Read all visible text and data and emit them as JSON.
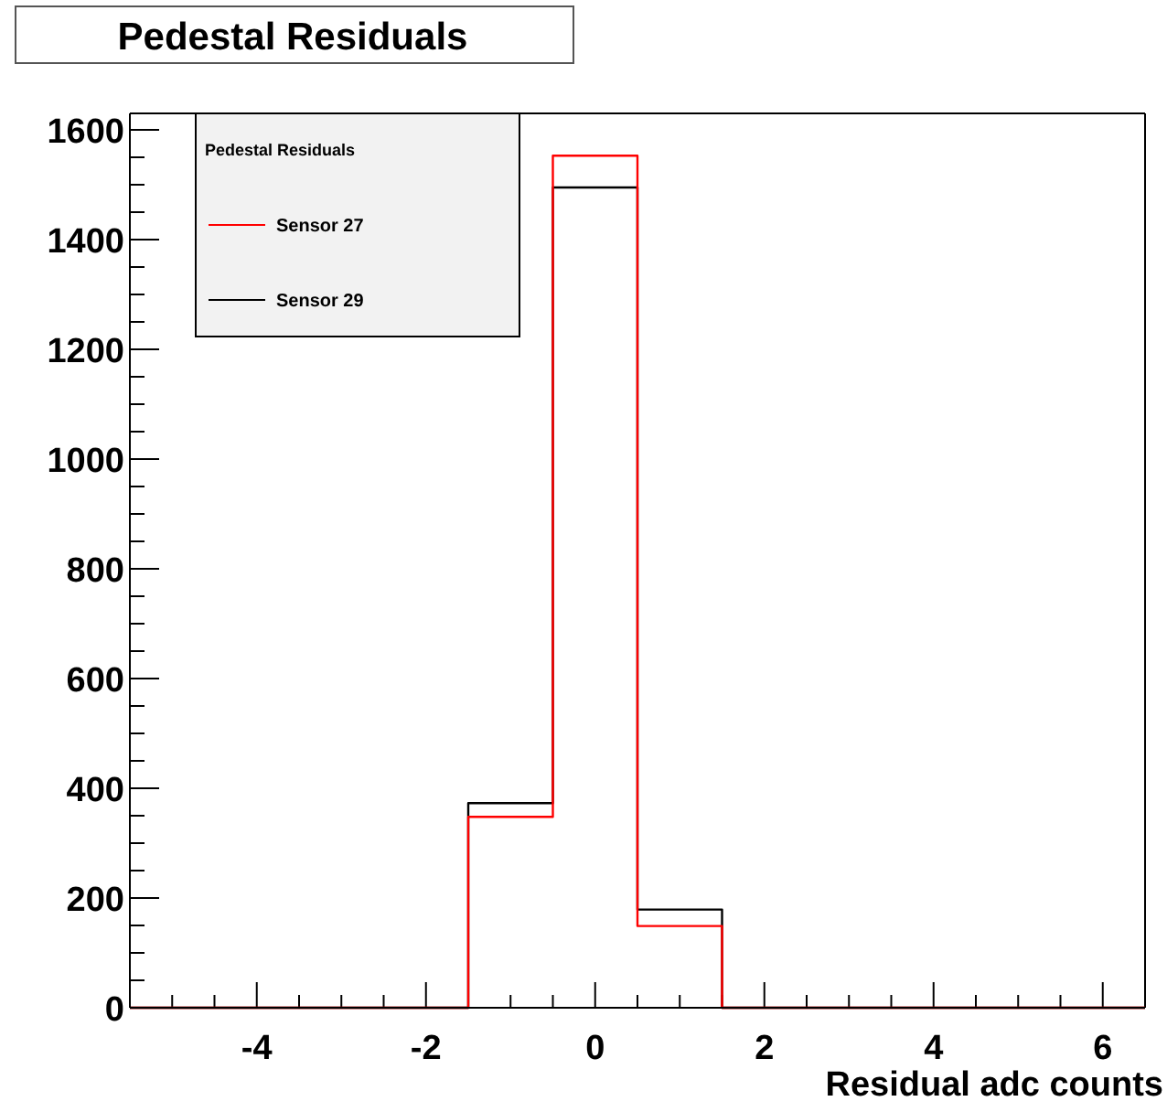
{
  "chart_data": {
    "type": "histogram",
    "title": "Pedestal Residuals",
    "xlabel": "Residual adc counts",
    "legend_title": "Pedestal Residuals",
    "legend": "top left",
    "bins": [
      -5.5,
      -4.5,
      -3.5,
      -2.5,
      -1.5,
      -0.5,
      0.5,
      1.5,
      2.5,
      3.5,
      4.5,
      5.5,
      6.5
    ],
    "series": [
      {
        "name": "Sensor 29",
        "color": "#000000",
        "values": [
          0,
          0,
          0,
          0,
          373,
          1495,
          179,
          0,
          0,
          0,
          0,
          0
        ]
      },
      {
        "name": "Sensor 27",
        "color": "#ff0000",
        "values": [
          0,
          0,
          0,
          0,
          348,
          1553,
          149,
          0,
          0,
          0,
          0,
          0
        ]
      }
    ],
    "xlim": [
      -5.5,
      6.5
    ],
    "ylim": [
      0,
      1630
    ],
    "xticks": [
      {
        "value": -5,
        "label": null
      },
      {
        "value": -4.5,
        "label": null
      },
      {
        "value": -4,
        "label": "-4"
      },
      {
        "value": -3.5,
        "label": null
      },
      {
        "value": -3,
        "label": null
      },
      {
        "value": -2.5,
        "label": null
      },
      {
        "value": -2,
        "label": "-2"
      },
      {
        "value": -1.5,
        "label": null
      },
      {
        "value": -1,
        "label": null
      },
      {
        "value": -0.5,
        "label": null
      },
      0,
      {
        "value": 0.5,
        "label": null
      },
      {
        "value": 1,
        "label": null
      },
      {
        "value": 1.5,
        "label": null
      },
      2,
      {
        "value": 2.5,
        "label": null
      },
      {
        "value": 3,
        "label": null
      },
      {
        "value": 3.5,
        "label": null
      },
      4,
      {
        "value": 4.5,
        "label": null
      },
      {
        "value": 5,
        "label": null
      },
      {
        "value": 5.5,
        "label": null
      },
      6
    ],
    "yticks": [
      0,
      {
        "value": 50,
        "label": null
      },
      {
        "value": 100,
        "label": null
      },
      {
        "value": 150,
        "label": null
      },
      200,
      {
        "value": 250,
        "label": null
      },
      {
        "value": 300,
        "label": null
      },
      {
        "value": 350,
        "label": null
      },
      400,
      {
        "value": 450,
        "label": null
      },
      {
        "value": 500,
        "label": null
      },
      {
        "value": 550,
        "label": null
      },
      600,
      {
        "value": 650,
        "label": null
      },
      {
        "value": 700,
        "label": null
      },
      {
        "value": 750,
        "label": null
      },
      800,
      {
        "value": 850,
        "label": null
      },
      {
        "value": 900,
        "label": null
      },
      {
        "value": 950,
        "label": null
      },
      1000,
      {
        "value": 1050,
        "label": null
      },
      {
        "value": 1100,
        "label": null
      },
      {
        "value": 1150,
        "label": null
      },
      1200,
      {
        "value": 1250,
        "label": null
      },
      {
        "value": 1300,
        "label": null
      },
      {
        "value": 1350,
        "label": null
      },
      1400,
      {
        "value": 1450,
        "label": null
      },
      {
        "value": 1500,
        "label": null
      },
      {
        "value": 1550,
        "label": null
      },
      1600
    ],
    "grid": false
  }
}
